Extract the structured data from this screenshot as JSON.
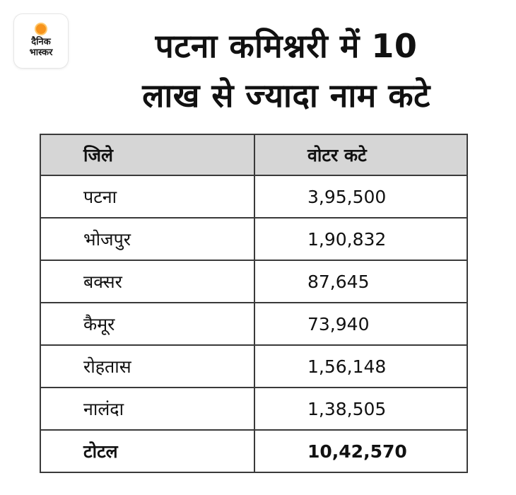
{
  "logo": {
    "line1": "दैनिक",
    "line2": "भास्कर"
  },
  "title": {
    "line1": "पटना कमिश्नरी में 10",
    "line2": "लाख से ज्यादा नाम कटे"
  },
  "chart_data": {
    "type": "table",
    "columns": [
      "जिले",
      "वोटर कटे"
    ],
    "rows": [
      {
        "district": "पटना",
        "value": "3,95,500"
      },
      {
        "district": "भोजपुर",
        "value": "1,90,832"
      },
      {
        "district": "बक्सर",
        "value": "87,645"
      },
      {
        "district": "कैमूर",
        "value": "73,940"
      },
      {
        "district": "रोहतास",
        "value": "1,56,148"
      },
      {
        "district": "नालंदा",
        "value": "1,38,505"
      }
    ],
    "total": {
      "label": "टोटल",
      "value": "10,42,570"
    }
  }
}
